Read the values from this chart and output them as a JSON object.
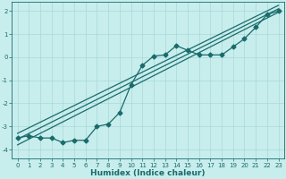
{
  "xlabel": "Humidex (Indice chaleur)",
  "xlim": [
    -0.5,
    23.5
  ],
  "ylim": [
    -4.4,
    2.4
  ],
  "xticks": [
    0,
    1,
    2,
    3,
    4,
    5,
    6,
    7,
    8,
    9,
    10,
    11,
    12,
    13,
    14,
    15,
    16,
    17,
    18,
    19,
    20,
    21,
    22,
    23
  ],
  "yticks": [
    -4,
    -3,
    -2,
    -1,
    0,
    1,
    2
  ],
  "bg_color": "#c8eded",
  "grid_color": "#a8d8d8",
  "line_color": "#1a6b6b",
  "curve_x": [
    0,
    1,
    2,
    3,
    4,
    5,
    6,
    7,
    8,
    9,
    10,
    11,
    12,
    13,
    14,
    15,
    16,
    17,
    18,
    19,
    20,
    21,
    22,
    23
  ],
  "curve_y": [
    -3.5,
    -3.4,
    -3.5,
    -3.5,
    -3.7,
    -3.6,
    -3.6,
    -3.0,
    -2.9,
    -2.4,
    -1.2,
    -0.35,
    0.05,
    0.1,
    0.5,
    0.3,
    0.1,
    0.1,
    0.1,
    0.45,
    0.8,
    1.3,
    1.85,
    2.0
  ],
  "line1_x": [
    0,
    23
  ],
  "line1_y": [
    -3.8,
    1.95
  ],
  "line2_x": [
    0,
    23
  ],
  "line2_y": [
    -3.55,
    2.1
  ],
  "line3_x": [
    0,
    23
  ],
  "line3_y": [
    -3.3,
    2.25
  ],
  "marker": "D",
  "markersize": 2.5,
  "linewidth": 0.9,
  "tick_fontsize": 5.0,
  "xlabel_fontsize": 6.5
}
